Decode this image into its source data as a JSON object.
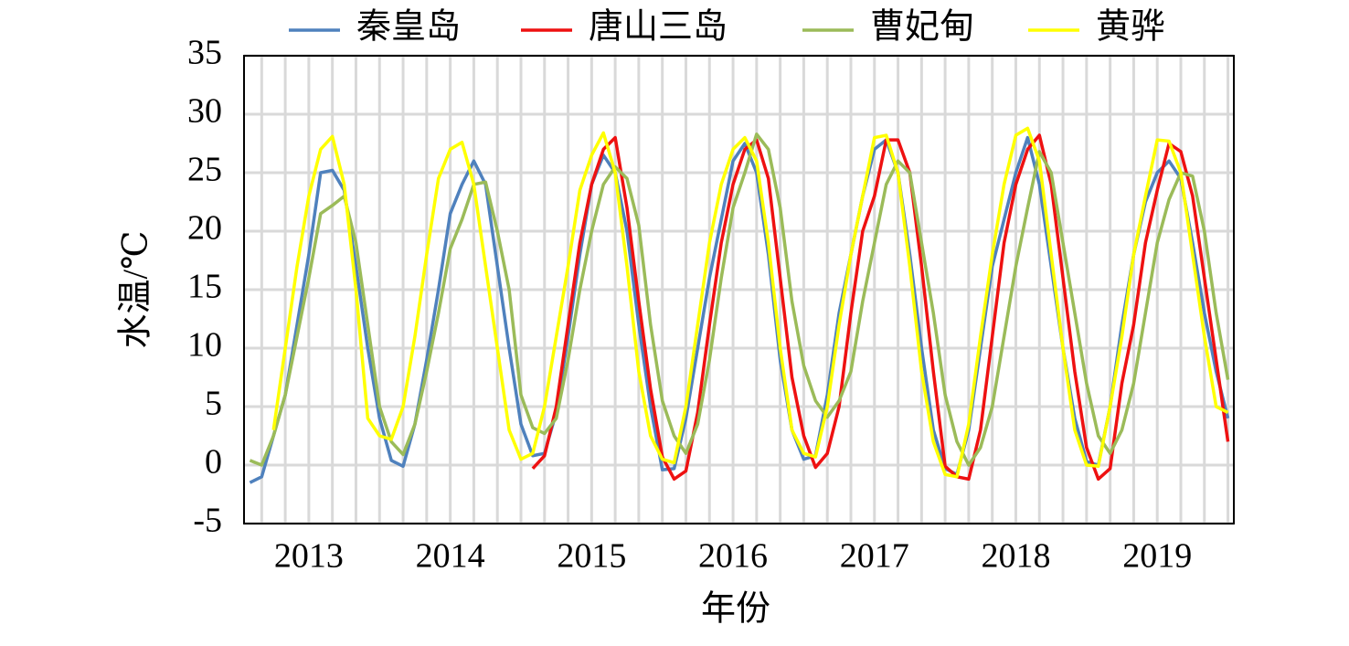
{
  "chart_data": {
    "type": "line",
    "x_label": "年份",
    "y_label": "水温/℃",
    "categories": [
      null,
      null,
      null,
      null,
      null,
      "2013",
      null,
      null,
      null,
      null,
      null,
      null,
      null,
      null,
      null,
      null,
      null,
      "2014",
      null,
      null,
      null,
      null,
      null,
      null,
      null,
      null,
      null,
      null,
      null,
      "2015",
      null,
      null,
      null,
      null,
      null,
      null,
      null,
      null,
      null,
      null,
      null,
      "2016",
      null,
      null,
      null,
      null,
      null,
      null,
      null,
      null,
      null,
      null,
      null,
      "2017",
      null,
      null,
      null,
      null,
      null,
      null,
      null,
      null,
      null,
      null,
      null,
      "2018",
      null,
      null,
      null,
      null,
      null,
      null,
      null,
      null,
      null,
      null,
      null,
      "2019",
      null,
      null,
      null,
      null,
      null,
      null
    ],
    "series": [
      {
        "name": "秦皇岛",
        "color": "#4f81bd",
        "values": [
          -1.5,
          -1,
          2.5,
          6,
          12,
          18,
          25,
          25.2,
          23.5,
          17,
          10,
          4,
          0.4,
          -0.1,
          3.5,
          9,
          15,
          21.5,
          24,
          26,
          24,
          17,
          10,
          3.5,
          0.8,
          1,
          4.5,
          11,
          18,
          24,
          26.5,
          25,
          20,
          12,
          5,
          -0.4,
          -0.3,
          4,
          10,
          16,
          21,
          26,
          27.5,
          25,
          18,
          9,
          3,
          0.5,
          0.8,
          6,
          13,
          18,
          23,
          27,
          27.8,
          25,
          18,
          10,
          3,
          -0.3,
          -0.8,
          3,
          10,
          17,
          21,
          25,
          28,
          24,
          17,
          10,
          4,
          0.3,
          0,
          5,
          12,
          18,
          22.5,
          25,
          26,
          24.5,
          19,
          13,
          8,
          4
        ]
      },
      {
        "name": "唐山三岛",
        "color": "#ee1111",
        "values": [
          null,
          null,
          null,
          null,
          null,
          null,
          null,
          null,
          null,
          null,
          null,
          null,
          null,
          null,
          null,
          null,
          null,
          null,
          null,
          null,
          null,
          null,
          null,
          null,
          -0.3,
          0.8,
          5,
          12,
          19,
          24,
          27,
          28,
          22,
          14,
          6.5,
          0.7,
          -1.2,
          -0.5,
          4.5,
          12,
          19,
          24,
          27,
          27.8,
          24.5,
          16,
          7.5,
          2.5,
          -0.2,
          1,
          5,
          13,
          20,
          23,
          27.8,
          27.8,
          25,
          17,
          8,
          -0.1,
          -1,
          -1.2,
          3,
          11,
          19,
          24,
          27,
          28.2,
          24,
          16,
          8,
          1.5,
          -1.2,
          -0.3,
          7,
          12,
          19,
          23.5,
          27.5,
          26.8,
          23,
          16,
          9,
          2
        ]
      },
      {
        "name": "曹妃甸",
        "color": "#9bbb59",
        "values": [
          0.4,
          0,
          2.5,
          6,
          11,
          16,
          21.5,
          22.2,
          23,
          19,
          12,
          5,
          2,
          0.9,
          3.5,
          8,
          13,
          18.5,
          21,
          24,
          24.2,
          20,
          15,
          6,
          3.2,
          2.7,
          4,
          9,
          15,
          20,
          24,
          25.5,
          24.5,
          20.5,
          12,
          5.5,
          2.5,
          1,
          3.5,
          9,
          16,
          22,
          25,
          28.3,
          27,
          22,
          14,
          8.5,
          5.5,
          4.1,
          5.5,
          8,
          14,
          19,
          24,
          26,
          25,
          19,
          13,
          6,
          2,
          0,
          1.5,
          5,
          11,
          17,
          22,
          26.8,
          25,
          19,
          13,
          7,
          2.5,
          1,
          3,
          7,
          13,
          19,
          22.7,
          25,
          24.7,
          20,
          13,
          7.3
        ]
      },
      {
        "name": "黄骅",
        "color": "#ffff00",
        "values": [
          null,
          null,
          3,
          10,
          17,
          23,
          27,
          28.1,
          24,
          15,
          4,
          2.5,
          2.2,
          5,
          11,
          18,
          24.5,
          27,
          27.6,
          24,
          17,
          10,
          3,
          0.5,
          1,
          5,
          11,
          17,
          23.5,
          26.5,
          28.4,
          25,
          17,
          8,
          2.5,
          0.5,
          0.2,
          5,
          12,
          19,
          24,
          27,
          28,
          26,
          19,
          10,
          3,
          1,
          0.7,
          5,
          12,
          18,
          23,
          28,
          28.2,
          25,
          17,
          8,
          2,
          -0.8,
          -1,
          3.5,
          11,
          18,
          24,
          28.2,
          28.8,
          26,
          18,
          10,
          3,
          0,
          -0.1,
          5,
          11,
          18,
          23,
          27.8,
          27.7,
          25,
          18,
          11,
          5,
          4.5
        ]
      }
    ],
    "ylim": [
      -5,
      35
    ],
    "yticks": [
      -5,
      0,
      5,
      10,
      15,
      20,
      25,
      30,
      35
    ],
    "grid": true
  }
}
